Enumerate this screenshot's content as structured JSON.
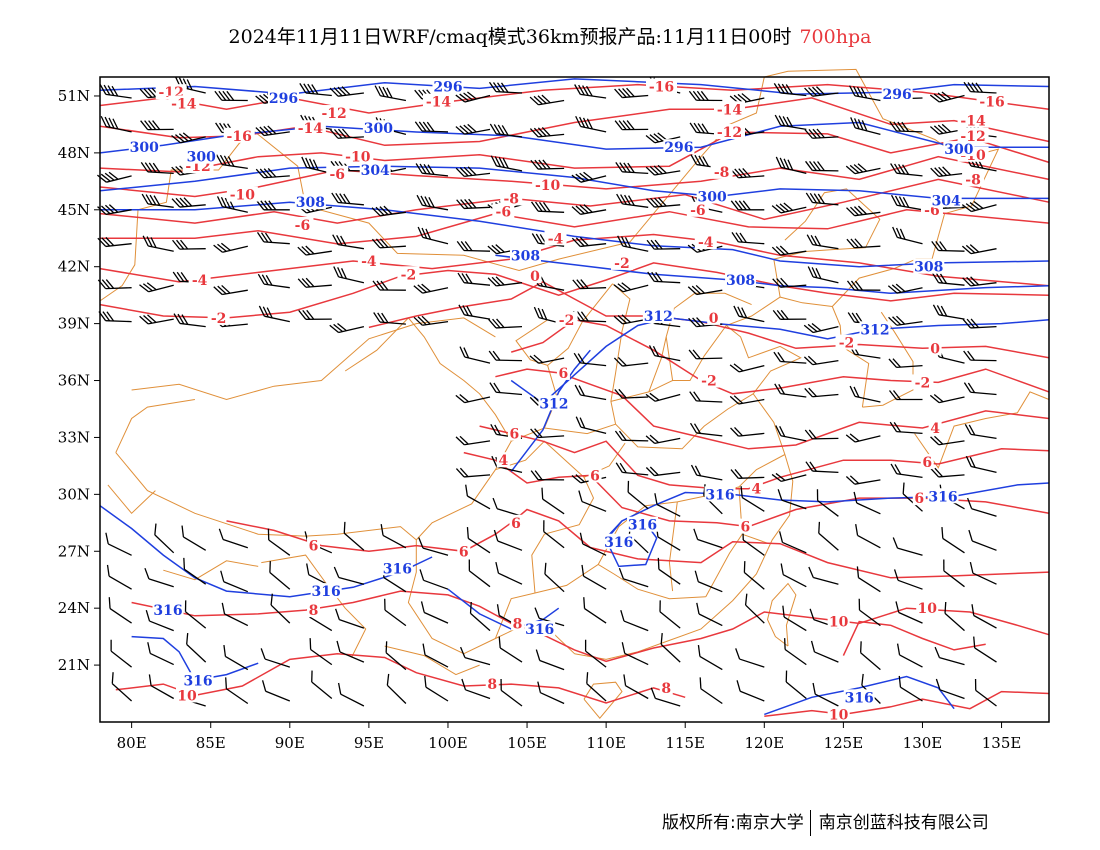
{
  "title": {
    "main": "2024年11月11日WRF/cmaq模式36km预报产品:11月11日00时",
    "level": "700hpa",
    "level_color": "#e8383d"
  },
  "footer": {
    "left": "版权所有:南京大学",
    "right": "南京创蓝科技有限公司"
  },
  "map": {
    "lon_labels": [
      "80E",
      "85E",
      "90E",
      "95E",
      "100E",
      "105E",
      "110E",
      "115E",
      "120E",
      "125E",
      "130E",
      "135E"
    ],
    "lat_labels": [
      "51N",
      "48N",
      "45N",
      "42N",
      "39N",
      "36N",
      "33N",
      "30N",
      "27N",
      "24N",
      "21N"
    ],
    "lon_range": [
      78,
      138
    ],
    "lat_range": [
      18,
      52
    ],
    "colors": {
      "temperature": "#e8383d",
      "geopotential": "#1f3fdf",
      "boundary": "#e0903a",
      "wind": "#000000"
    },
    "temperature_labels": [
      {
        "text": "-12",
        "lon": 82.5,
        "lat": 51.2
      },
      {
        "text": "-14",
        "lon": 83.3,
        "lat": 50.6
      },
      {
        "text": "-16",
        "lon": 86.8,
        "lat": 48.9
      },
      {
        "text": "-14",
        "lon": 91.3,
        "lat": 49.3
      },
      {
        "text": "-12",
        "lon": 92.8,
        "lat": 50.1
      },
      {
        "text": "-10",
        "lon": 94.3,
        "lat": 47.8
      },
      {
        "text": "-14",
        "lon": 99.4,
        "lat": 50.7
      },
      {
        "text": "-16",
        "lon": 113.5,
        "lat": 51.5
      },
      {
        "text": "-14",
        "lon": 117.8,
        "lat": 50.3
      },
      {
        "text": "-12",
        "lon": 117.8,
        "lat": 49.1
      },
      {
        "text": "-16",
        "lon": 134.4,
        "lat": 50.7
      },
      {
        "text": "-14",
        "lon": 133.2,
        "lat": 49.7
      },
      {
        "text": "-12",
        "lon": 133.2,
        "lat": 48.9
      },
      {
        "text": "-10",
        "lon": 133.2,
        "lat": 47.9
      },
      {
        "text": "-8",
        "lon": 133.2,
        "lat": 46.6
      },
      {
        "text": "-6",
        "lon": 130.6,
        "lat": 45.0
      },
      {
        "text": "-12",
        "lon": 84.2,
        "lat": 47.3
      },
      {
        "text": "-10",
        "lon": 87.0,
        "lat": 45.8
      },
      {
        "text": "-6",
        "lon": 93.0,
        "lat": 46.9
      },
      {
        "text": "-6",
        "lon": 90.8,
        "lat": 44.2
      },
      {
        "text": "-10",
        "lon": 106.3,
        "lat": 46.3
      },
      {
        "text": "-8",
        "lon": 104.0,
        "lat": 45.6
      },
      {
        "text": "-6",
        "lon": 103.5,
        "lat": 44.9
      },
      {
        "text": "-4",
        "lon": 106.8,
        "lat": 43.5
      },
      {
        "text": "-8",
        "lon": 117.3,
        "lat": 47.0
      },
      {
        "text": "-6",
        "lon": 115.8,
        "lat": 45.0
      },
      {
        "text": "-4",
        "lon": 116.3,
        "lat": 43.3
      },
      {
        "text": "-4",
        "lon": 84.3,
        "lat": 41.3
      },
      {
        "text": "-4",
        "lon": 95.0,
        "lat": 42.3
      },
      {
        "text": "-2",
        "lon": 97.5,
        "lat": 41.6
      },
      {
        "text": "-2",
        "lon": 85.5,
        "lat": 39.3
      },
      {
        "text": "0",
        "lon": 105.5,
        "lat": 41.5
      },
      {
        "text": "-2",
        "lon": 111.0,
        "lat": 42.2
      },
      {
        "text": "-2",
        "lon": 107.5,
        "lat": 39.2
      },
      {
        "text": "0",
        "lon": 116.8,
        "lat": 39.3
      },
      {
        "text": "-2",
        "lon": 125.2,
        "lat": 38.0
      },
      {
        "text": "0",
        "lon": 130.8,
        "lat": 37.7
      },
      {
        "text": "-2",
        "lon": 130.0,
        "lat": 35.9
      },
      {
        "text": "-2",
        "lon": 116.5,
        "lat": 36.0
      },
      {
        "text": "6",
        "lon": 107.3,
        "lat": 36.4
      },
      {
        "text": "6",
        "lon": 104.2,
        "lat": 33.2
      },
      {
        "text": "4",
        "lon": 103.5,
        "lat": 31.8
      },
      {
        "text": "6",
        "lon": 109.3,
        "lat": 31.0
      },
      {
        "text": "6",
        "lon": 104.3,
        "lat": 28.5
      },
      {
        "text": "4",
        "lon": 119.5,
        "lat": 30.3
      },
      {
        "text": "6",
        "lon": 118.8,
        "lat": 28.3
      },
      {
        "text": "4",
        "lon": 130.8,
        "lat": 33.5
      },
      {
        "text": "6",
        "lon": 130.3,
        "lat": 31.7
      },
      {
        "text": "6",
        "lon": 129.8,
        "lat": 29.8
      },
      {
        "text": "6",
        "lon": 91.5,
        "lat": 27.3
      },
      {
        "text": "6",
        "lon": 101.0,
        "lat": 27.0
      },
      {
        "text": "8",
        "lon": 91.5,
        "lat": 23.9
      },
      {
        "text": "8",
        "lon": 104.4,
        "lat": 23.2
      },
      {
        "text": "8",
        "lon": 102.8,
        "lat": 20.0
      },
      {
        "text": "8",
        "lon": 113.8,
        "lat": 19.8
      },
      {
        "text": "10",
        "lon": 83.5,
        "lat": 19.4
      },
      {
        "text": "10",
        "lon": 124.7,
        "lat": 23.3
      },
      {
        "text": "10",
        "lon": 130.3,
        "lat": 24.0
      },
      {
        "text": "10",
        "lon": 124.7,
        "lat": 18.4
      }
    ],
    "height_labels": [
      {
        "text": "296",
        "lon": 89.6,
        "lat": 50.9
      },
      {
        "text": "296",
        "lon": 100.0,
        "lat": 51.5
      },
      {
        "text": "296",
        "lon": 128.4,
        "lat": 51.1
      },
      {
        "text": "300",
        "lon": 95.6,
        "lat": 49.3
      },
      {
        "text": "300",
        "lon": 80.8,
        "lat": 48.3
      },
      {
        "text": "300",
        "lon": 84.4,
        "lat": 47.8
      },
      {
        "text": "296",
        "lon": 114.6,
        "lat": 48.3
      },
      {
        "text": "300",
        "lon": 132.3,
        "lat": 48.2
      },
      {
        "text": "300",
        "lon": 116.7,
        "lat": 45.7
      },
      {
        "text": "304",
        "lon": 95.4,
        "lat": 47.1
      },
      {
        "text": "308",
        "lon": 91.3,
        "lat": 45.4
      },
      {
        "text": "304",
        "lon": 131.5,
        "lat": 45.5
      },
      {
        "text": "308",
        "lon": 104.9,
        "lat": 42.6
      },
      {
        "text": "308",
        "lon": 118.5,
        "lat": 41.3
      },
      {
        "text": "308",
        "lon": 130.4,
        "lat": 42.0
      },
      {
        "text": "312",
        "lon": 113.3,
        "lat": 39.4
      },
      {
        "text": "312",
        "lon": 127.0,
        "lat": 38.7
      },
      {
        "text": "312",
        "lon": 106.7,
        "lat": 34.8
      },
      {
        "text": "316",
        "lon": 117.2,
        "lat": 30.0
      },
      {
        "text": "316",
        "lon": 131.3,
        "lat": 29.9
      },
      {
        "text": "316",
        "lon": 112.3,
        "lat": 28.4
      },
      {
        "text": "316",
        "lon": 110.8,
        "lat": 27.5
      },
      {
        "text": "316",
        "lon": 96.8,
        "lat": 26.1
      },
      {
        "text": "316",
        "lon": 92.3,
        "lat": 24.9
      },
      {
        "text": "316",
        "lon": 82.3,
        "lat": 23.9
      },
      {
        "text": "316",
        "lon": 84.2,
        "lat": 20.2
      },
      {
        "text": "316",
        "lon": 105.8,
        "lat": 22.9
      },
      {
        "text": "316",
        "lon": 126.0,
        "lat": 19.3
      }
    ]
  }
}
